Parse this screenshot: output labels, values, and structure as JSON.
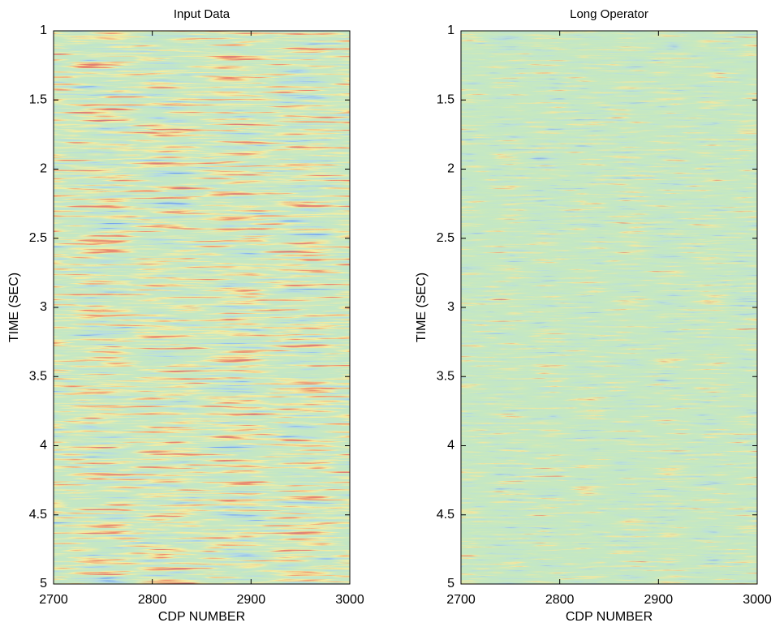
{
  "chart_data": [
    {
      "type": "heatmap",
      "title": "Input Data",
      "xlabel": "CDP NUMBER",
      "ylabel": "TIME (SEC)",
      "xlim": [
        2700,
        3000
      ],
      "xticks": [
        2700,
        2800,
        2900,
        3000
      ],
      "ylim": [
        1,
        5
      ],
      "y_reversed": true,
      "yticks": [
        1,
        1.5,
        2,
        2.5,
        3,
        3.5,
        4,
        4.5,
        5
      ]
    },
    {
      "type": "heatmap",
      "title": "Long Operator",
      "xlabel": "CDP NUMBER",
      "ylabel": "TIME (SEC)",
      "xlim": [
        2700,
        3000
      ],
      "xticks": [
        2700,
        2800,
        2900,
        3000
      ],
      "ylim": [
        1,
        5
      ],
      "y_reversed": true,
      "yticks": [
        1,
        1.5,
        2,
        2.5,
        3,
        3.5,
        4,
        4.5,
        5
      ]
    }
  ]
}
